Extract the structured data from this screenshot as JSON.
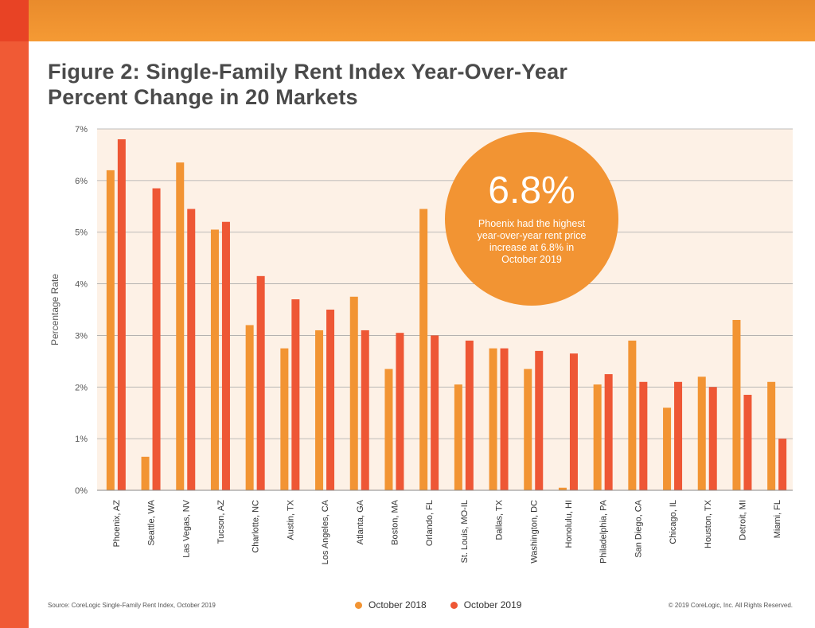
{
  "title": "Figure 2: Single-Family Rent Index Year-Over-Year Percent Change in 20 Markets",
  "callout": {
    "value": "6.8%",
    "text": "Phoenix had the highest year-over-year rent price increase at 6.8% in October 2019"
  },
  "footer": {
    "source": "Source: CoreLogic Single-Family Rent Index, October 2019",
    "copyright": "© 2019 CoreLogic, Inc. All Rights Reserved."
  },
  "colors": {
    "brand_orange": "#f59a34",
    "brand_red": "#f05a35",
    "plot_background": "#fdf1e6",
    "series_2018": "#f29433",
    "series_2019": "#ee5735"
  },
  "chart_data": {
    "type": "bar",
    "ylabel": "Percentage Rate",
    "xlabel": "",
    "ylim": [
      0,
      7
    ],
    "yticks": [
      "0%",
      "1%",
      "2%",
      "3%",
      "4%",
      "5%",
      "6%",
      "7%"
    ],
    "grid": true,
    "legend_position": "bottom",
    "categories": [
      "Phoenix, AZ",
      "Seattle, WA",
      "Las Vegas, NV",
      "Tucson, AZ",
      "Charlotte, NC",
      "Austin, TX",
      "Los Angeles, CA",
      "Atlanta, GA",
      "Boston, MA",
      "Orlando, FL",
      "St. Louis, MO-IL",
      "Dallas, TX",
      "Washington, DC",
      "Honolulu, HI",
      "Philadelphia, PA",
      "San Diego, CA",
      "Chicago, IL",
      "Houston, TX",
      "Detroit, MI",
      "Miami, FL"
    ],
    "series": [
      {
        "name": "October 2018",
        "color": "#f29433",
        "values": [
          6.2,
          0.65,
          6.35,
          5.05,
          3.2,
          2.75,
          3.1,
          3.75,
          2.35,
          5.45,
          2.05,
          2.75,
          2.35,
          0.05,
          2.05,
          2.9,
          1.6,
          2.2,
          3.3,
          2.1
        ]
      },
      {
        "name": "October 2019",
        "color": "#ee5735",
        "values": [
          6.8,
          5.85,
          5.45,
          5.2,
          4.15,
          3.7,
          3.5,
          3.1,
          3.05,
          3.0,
          2.9,
          2.75,
          2.7,
          2.65,
          2.25,
          2.1,
          2.1,
          2.0,
          1.85,
          1.0
        ]
      }
    ]
  }
}
